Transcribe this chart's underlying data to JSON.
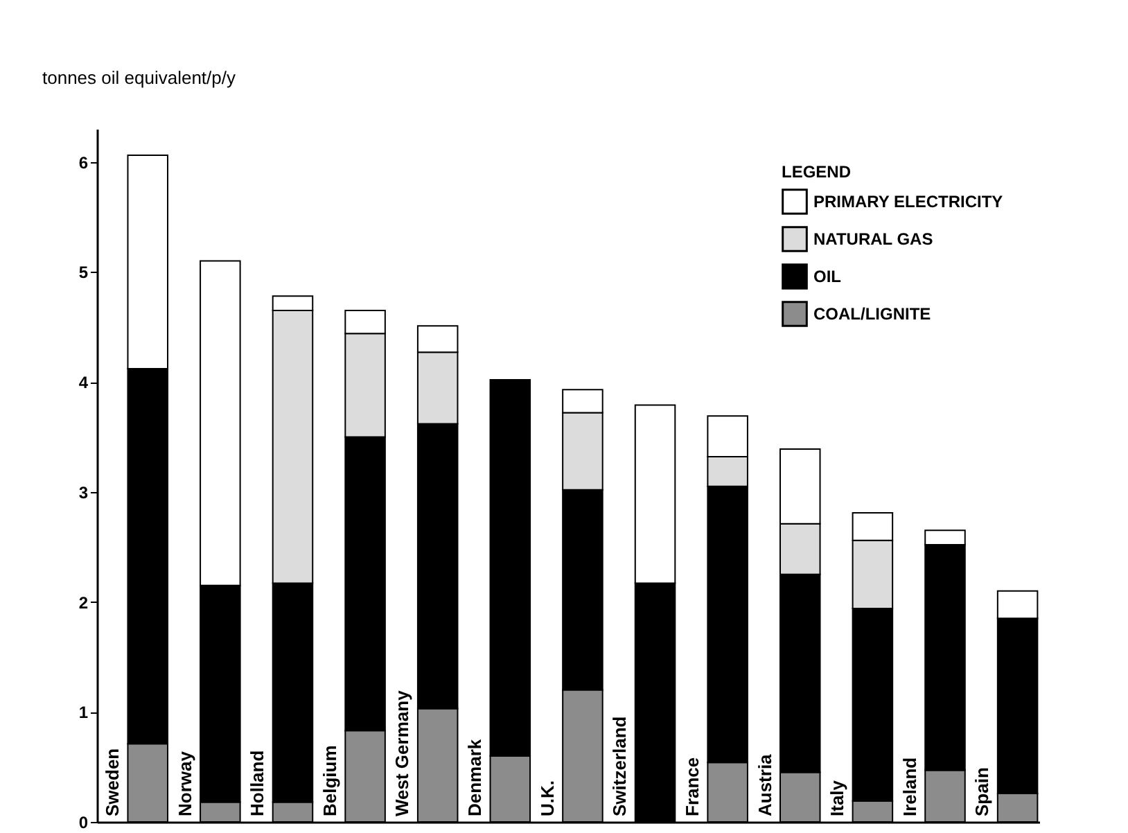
{
  "chart_data": {
    "type": "bar",
    "stacked": true,
    "ylabel": "tonnes oil equivalent/p/y",
    "legend_title": "LEGEND",
    "legend": "top right",
    "categories": [
      "Sweden",
      "Norway",
      "Holland",
      "Belgium",
      "West Germany",
      "Denmark",
      "U.K.",
      "Switzerland",
      "France",
      "Austria",
      "Italy",
      "Ireland",
      "Spain"
    ],
    "ylim": [
      0,
      6.3
    ],
    "yticks": [
      0,
      1,
      2,
      3,
      4,
      5,
      6
    ],
    "grid": false,
    "series": [
      {
        "name": "COAL/LIGNITE",
        "color": "#8c8c8c",
        "values": [
          0.71,
          0.18,
          0.18,
          0.83,
          1.03,
          0.6,
          1.2,
          0,
          0.54,
          0.45,
          0.19,
          0.47,
          0.26
        ]
      },
      {
        "name": "OIL",
        "color": "#000000",
        "values": [
          3.41,
          1.97,
          1.99,
          2.67,
          2.59,
          3.42,
          1.82,
          2.17,
          2.51,
          1.8,
          1.75,
          2.05,
          1.59
        ]
      },
      {
        "name": "NATURAL GAS",
        "color": "#dcdcdc",
        "values": [
          0,
          0,
          2.48,
          0.94,
          0.65,
          0,
          0.7,
          0,
          0.27,
          0.46,
          0.62,
          0,
          0
        ]
      },
      {
        "name": "PRIMARY ELECTRICITY",
        "color": "#ffffff",
        "values": [
          1.94,
          2.95,
          0.13,
          0.21,
          0.24,
          0,
          0.21,
          1.62,
          0.37,
          0.68,
          0.25,
          0.13,
          0.25
        ]
      }
    ]
  }
}
